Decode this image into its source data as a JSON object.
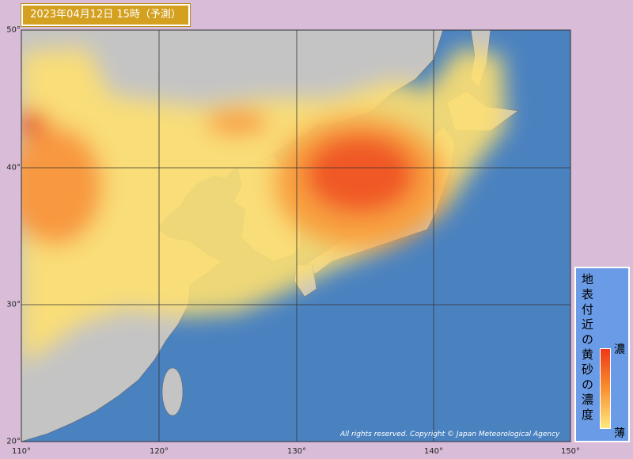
{
  "header": {
    "title": "2023年04月12日 15時（予測）"
  },
  "map": {
    "lat_labels": [
      "50°",
      "40°",
      "30°",
      "20°"
    ],
    "lon_labels": [
      "110°",
      "120°",
      "130°",
      "140°",
      "150°"
    ],
    "copyright": "All rights reserved. Copyright © Japan Meteorological Agency"
  },
  "legend": {
    "title": "地表付近の黄砂の濃度",
    "high": "濃",
    "low": "薄"
  }
}
